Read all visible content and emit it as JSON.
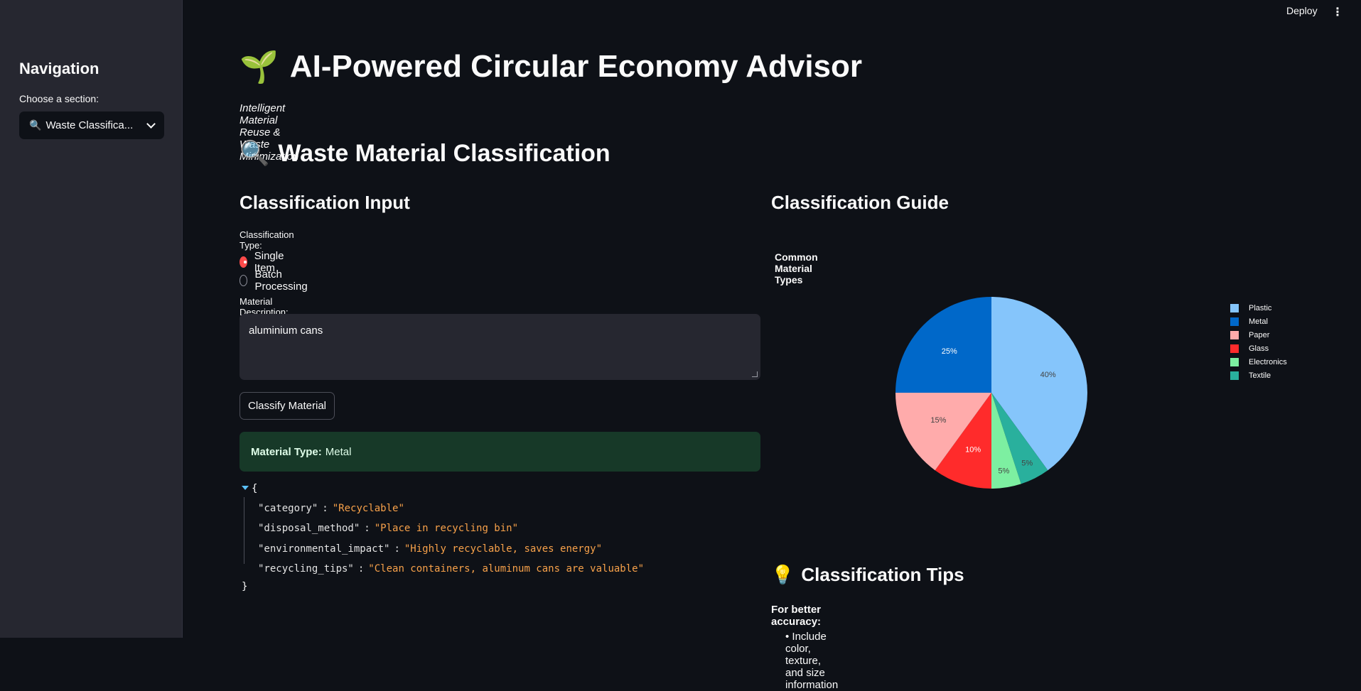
{
  "topbar": {
    "deploy_label": "Deploy",
    "menu_glyph": "⋮"
  },
  "sidebar": {
    "title": "Navigation",
    "select_label": "Choose a section:",
    "selected_value": "Waste Classifica...",
    "selected_icon": "🔍"
  },
  "header": {
    "title_icon": "🌱",
    "title": "AI-Powered Circular Economy Advisor",
    "subtitle": "Intelligent Material Reuse & Waste Minimization"
  },
  "section": {
    "icon": "🔍",
    "title": "Waste Material Classification"
  },
  "input": {
    "heading": "Classification Input",
    "type_label": "Classification Type:",
    "options": [
      {
        "label": "Single Item",
        "selected": true
      },
      {
        "label": "Batch Processing",
        "selected": false
      }
    ],
    "description_label": "Material Description:",
    "description_value": "aluminium cans",
    "button_label": "Classify Material",
    "result_label": "Material Type:",
    "result_value": "Metal"
  },
  "json_result": {
    "open": "{",
    "close": "}",
    "entries": [
      {
        "key": "\"category\"",
        "value": "\"Recyclable\""
      },
      {
        "key": "\"disposal_method\"",
        "value": "\"Place in recycling bin\""
      },
      {
        "key": "\"environmental_impact\"",
        "value": "\"Highly recyclable, saves energy\""
      },
      {
        "key": "\"recycling_tips\"",
        "value": "\"Clean containers, aluminum cans are valuable\""
      }
    ]
  },
  "guide": {
    "heading": "Classification Guide"
  },
  "chart_data": {
    "type": "pie",
    "title": "Common Material Types",
    "categories": [
      "Plastic",
      "Metal",
      "Paper",
      "Glass",
      "Electronics",
      "Textile"
    ],
    "values": [
      40,
      25,
      15,
      10,
      5,
      5
    ],
    "labels": [
      "40%",
      "25%",
      "15%",
      "10%",
      "5%",
      "5%"
    ],
    "colors": [
      "#85c5fb",
      "#0068c9",
      "#ffabab",
      "#ff2b2b",
      "#7defa1",
      "#29b09d"
    ],
    "legend_placement": "right",
    "slice_order_clockwise_from_top": [
      "Plastic",
      "Textile",
      "Electronics",
      "Glass",
      "Paper",
      "Metal"
    ]
  },
  "tips": {
    "icon": "💡",
    "title": "Classification Tips",
    "subtitle": "For better accuracy:",
    "first_item": "• Include color, texture, and size information"
  }
}
